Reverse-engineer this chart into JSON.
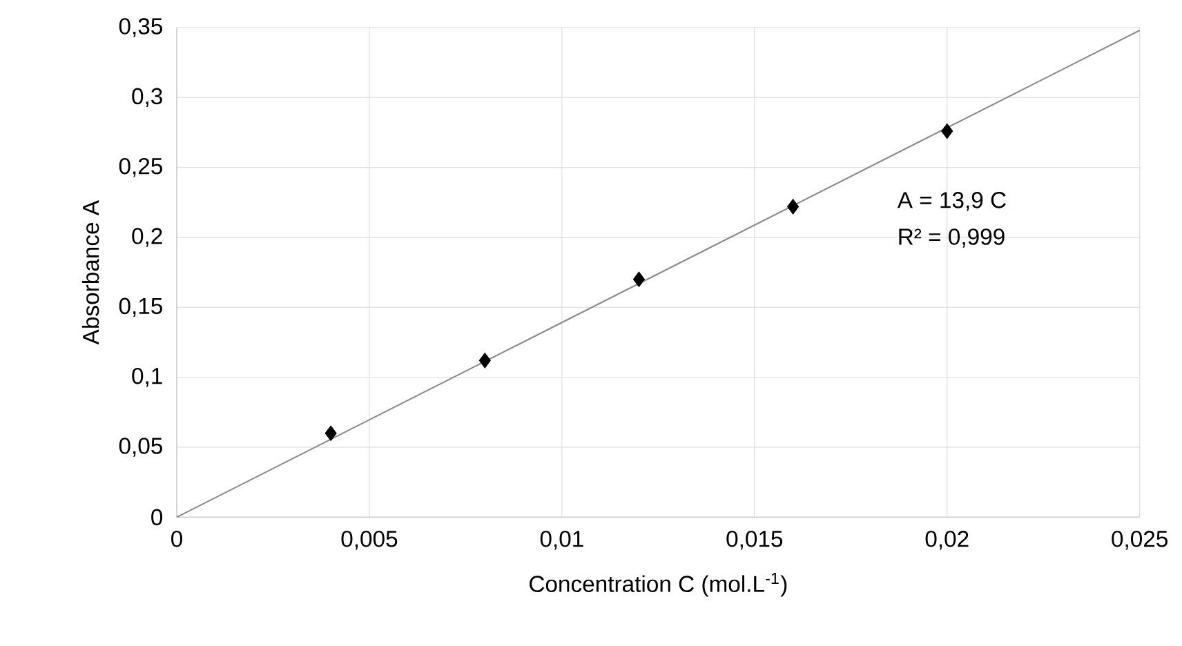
{
  "chart_data": {
    "type": "scatter",
    "xlabel": "Concentration C (mol.L$^{-1}$)",
    "ylabel": "Absorbance A",
    "series": [
      {
        "color": "#000000",
        "marker": "diamond",
        "x": [
          0.004,
          0.008,
          0.012,
          0.016,
          0.02
        ],
        "values": [
          0.06,
          0.112,
          0.17,
          0.222,
          0.276
        ]
      },
      {
        "type": "line",
        "color": "#8c8c8c",
        "marker": "none",
        "x": [
          0,
          0.025
        ],
        "values": [
          0,
          0.348
        ]
      }
    ],
    "xlim": [
      0,
      0.025
    ],
    "ylim": [
      0,
      0.35
    ],
    "xticks": [
      0,
      {
        "value": 0.005,
        "label": "0,005"
      },
      {
        "value": 0.01,
        "label": "0,01"
      },
      {
        "value": 0.015,
        "label": "0,015"
      },
      {
        "value": 0.02,
        "label": "0,02"
      },
      {
        "value": 0.025,
        "label": "0,025"
      }
    ],
    "yticks": [
      0,
      {
        "value": 0.05,
        "label": "0,05"
      },
      {
        "value": 0.1,
        "label": "0,1"
      },
      {
        "value": 0.15,
        "label": "0,15"
      },
      {
        "value": 0.2,
        "label": "0,2"
      },
      {
        "value": 0.25,
        "label": "0,25"
      },
      {
        "value": 0.3,
        "label": "0,3"
      },
      {
        "value": 0.35,
        "label": "0,35"
      }
    ],
    "grid": true,
    "annotations": [
      "A = 13,9 C",
      "R² = 0,999"
    ]
  }
}
